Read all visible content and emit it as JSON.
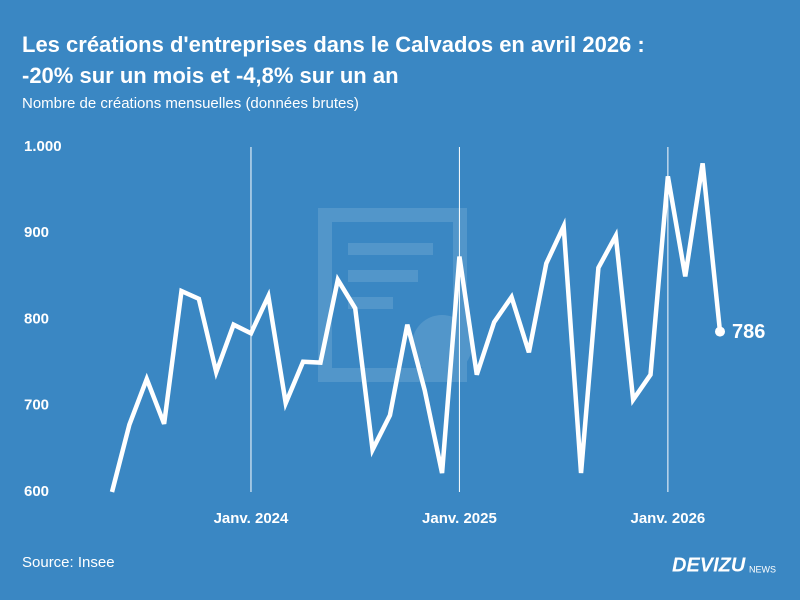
{
  "chart_data": {
    "type": "line",
    "title": [
      "Les créations d'entreprises dans le Calvados en avril 2026 :",
      "-20% sur un mois et -4,8% sur un an"
    ],
    "subtitle": "Nombre de créations mensuelles (données brutes)",
    "source": "Source: Insee",
    "logo": {
      "main": "DEVIZU",
      "small": "NEWS"
    },
    "categories": [
      null,
      null,
      null,
      null,
      null,
      null,
      null,
      null,
      "Janv. 2024",
      null,
      null,
      null,
      null,
      null,
      null,
      null,
      null,
      null,
      null,
      null,
      "Janv. 2025",
      null,
      null,
      null,
      null,
      null,
      null,
      null,
      null,
      null,
      null,
      null,
      "Janv. 2026",
      null,
      null,
      null
    ],
    "values": [
      600,
      678,
      731,
      679,
      833,
      824,
      739,
      794,
      784,
      827,
      703,
      751,
      750,
      846,
      813,
      649,
      689,
      794,
      718,
      622,
      873,
      736,
      797,
      826,
      762,
      865,
      908,
      622,
      860,
      897,
      707,
      736,
      966,
      850,
      981,
      786
    ],
    "color": "#ffffff",
    "ylim": [
      600,
      1000
    ],
    "yticks": [
      600,
      700,
      800,
      900,
      {
        "value": 1000,
        "label": "1.000"
      }
    ],
    "grid": false
  }
}
